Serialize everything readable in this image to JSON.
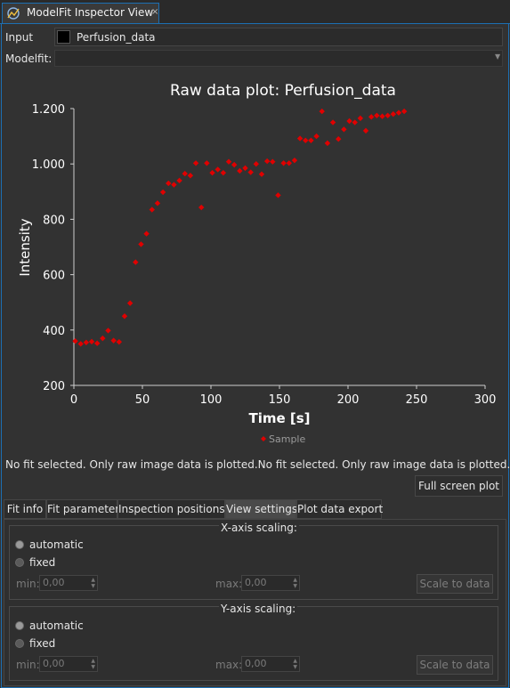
{
  "view_tab": {
    "title": "ModelFit Inspector View",
    "close": "×"
  },
  "input": {
    "label": "Input",
    "value": "Perfusion_data"
  },
  "modelfit": {
    "label": "Modelfit:",
    "value": ""
  },
  "chart_data": {
    "type": "scatter",
    "title": "Raw data plot: Perfusion_data",
    "xlabel": "Time [s]",
    "ylabel": "Intensity",
    "xlim": [
      0,
      300
    ],
    "ylim": [
      200,
      1200
    ],
    "xticks": [
      "0",
      "50",
      "100",
      "150",
      "200",
      "250",
      "300"
    ],
    "yticks": [
      "200",
      "400",
      "600",
      "800",
      "1.000",
      "1.200"
    ],
    "legend_position": "bottom",
    "grid": false,
    "series": [
      {
        "name": "Sample",
        "color": "#e00000",
        "marker": "diamond",
        "points": [
          [
            1,
            360
          ],
          [
            5,
            350
          ],
          [
            9,
            355
          ],
          [
            13,
            358
          ],
          [
            17,
            352
          ],
          [
            21,
            370
          ],
          [
            25,
            398
          ],
          [
            29,
            362
          ],
          [
            33,
            357
          ],
          [
            37,
            450
          ],
          [
            41,
            497
          ],
          [
            45,
            645
          ],
          [
            49,
            710
          ],
          [
            53,
            748
          ],
          [
            57,
            835
          ],
          [
            61,
            858
          ],
          [
            65,
            898
          ],
          [
            69,
            930
          ],
          [
            73,
            925
          ],
          [
            77,
            940
          ],
          [
            81,
            965
          ],
          [
            85,
            958
          ],
          [
            89,
            1003
          ],
          [
            93,
            843
          ],
          [
            97,
            1003
          ],
          [
            101,
            968
          ],
          [
            105,
            980
          ],
          [
            109,
            968
          ],
          [
            113,
            1008
          ],
          [
            117,
            997
          ],
          [
            121,
            975
          ],
          [
            125,
            985
          ],
          [
            129,
            970
          ],
          [
            133,
            1000
          ],
          [
            137,
            963
          ],
          [
            141,
            1010
          ],
          [
            145,
            1008
          ],
          [
            149,
            887
          ],
          [
            153,
            1003
          ],
          [
            157,
            1003
          ],
          [
            161,
            1013
          ],
          [
            165,
            1092
          ],
          [
            169,
            1085
          ],
          [
            173,
            1085
          ],
          [
            177,
            1100
          ],
          [
            181,
            1190
          ],
          [
            185,
            1075
          ],
          [
            189,
            1150
          ],
          [
            193,
            1090
          ],
          [
            197,
            1125
          ],
          [
            201,
            1155
          ],
          [
            205,
            1150
          ],
          [
            209,
            1165
          ],
          [
            213,
            1120
          ],
          [
            217,
            1170
          ],
          [
            221,
            1175
          ],
          [
            225,
            1172
          ],
          [
            229,
            1175
          ],
          [
            233,
            1180
          ],
          [
            237,
            1185
          ],
          [
            241,
            1190
          ]
        ]
      }
    ]
  },
  "notice": "No fit selected. Only raw image data is plotted.No fit selected. Only raw image data is plotted.",
  "fullscreen_button": "Full screen plot",
  "tabs": [
    "Fit info",
    "Fit parameter",
    "Inspection positions",
    "View settings",
    "Plot data export"
  ],
  "active_tab": "View settings",
  "x_scaling": {
    "title": "X-axis scaling:",
    "automatic": "automatic",
    "fixed": "fixed",
    "min_label": "min:",
    "min_value": "0,00",
    "max_label": "max:",
    "max_value": "0,00",
    "scale_button": "Scale to data"
  },
  "y_scaling": {
    "title": "Y-axis scaling:",
    "automatic": "automatic",
    "fixed": "fixed",
    "min_label": "min:",
    "min_value": "0,00",
    "max_label": "max:",
    "max_value": "0,00",
    "scale_button": "Scale to data"
  }
}
